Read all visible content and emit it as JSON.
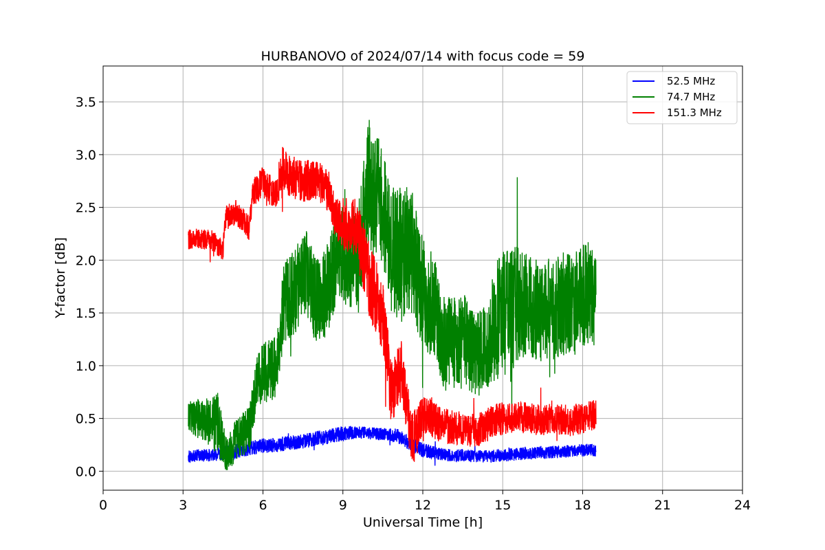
{
  "chart_data": {
    "type": "line",
    "title": "HURBANOVO of 2024/07/14 with focus code = 59",
    "xlabel": "Universal Time [h]",
    "ylabel": "Y-factor [dB]",
    "xlim": [
      0,
      24
    ],
    "ylim": [
      -0.18,
      3.84
    ],
    "x_ticks": [
      0,
      3,
      6,
      9,
      12,
      15,
      18,
      21,
      24
    ],
    "y_ticks": [
      0.0,
      0.5,
      1.0,
      1.5,
      2.0,
      2.5,
      3.0,
      3.5
    ],
    "x_tick_labels": [
      "0",
      "3",
      "6",
      "9",
      "12",
      "15",
      "18",
      "21",
      "24"
    ],
    "y_tick_labels": [
      "0.0",
      "0.5",
      "1.0",
      "1.5",
      "2.0",
      "2.5",
      "3.0",
      "3.5"
    ],
    "grid": true,
    "legend_position": "top-right",
    "series": [
      {
        "name": "52.5 MHz",
        "color": "#0000ff",
        "x": [
          3.2,
          3.5,
          4.0,
          4.5,
          5.0,
          5.5,
          6.0,
          6.5,
          7.0,
          7.5,
          8.0,
          8.5,
          9.0,
          9.5,
          10.0,
          10.5,
          11.0,
          11.5,
          12.0,
          12.5,
          13.0,
          13.5,
          14.0,
          14.5,
          15.0,
          15.5,
          16.0,
          16.5,
          17.0,
          17.5,
          18.0,
          18.5
        ],
        "mean": [
          0.14,
          0.15,
          0.15,
          0.17,
          0.19,
          0.22,
          0.24,
          0.25,
          0.27,
          0.28,
          0.31,
          0.33,
          0.36,
          0.37,
          0.36,
          0.35,
          0.34,
          0.27,
          0.2,
          0.17,
          0.15,
          0.15,
          0.14,
          0.14,
          0.15,
          0.16,
          0.17,
          0.18,
          0.18,
          0.19,
          0.2,
          0.2
        ],
        "amp": [
          0.06,
          0.06,
          0.06,
          0.07,
          0.07,
          0.07,
          0.07,
          0.07,
          0.07,
          0.07,
          0.07,
          0.07,
          0.07,
          0.06,
          0.06,
          0.06,
          0.07,
          0.07,
          0.07,
          0.06,
          0.06,
          0.06,
          0.06,
          0.06,
          0.06,
          0.06,
          0.06,
          0.06,
          0.06,
          0.06,
          0.06,
          0.06
        ]
      },
      {
        "name": "74.7 MHz",
        "color": "#008000",
        "x": [
          3.2,
          3.5,
          4.0,
          4.3,
          4.6,
          5.0,
          5.5,
          5.8,
          6.2,
          6.5,
          6.8,
          7.2,
          7.6,
          8.0,
          8.4,
          8.8,
          9.2,
          9.6,
          10.0,
          10.4,
          10.8,
          11.2,
          11.6,
          12.0,
          12.4,
          12.8,
          13.2,
          13.6,
          14.0,
          14.4,
          14.8,
          15.2,
          15.6,
          16.0,
          16.5,
          17.0,
          17.5,
          18.0,
          18.5
        ],
        "mean": [
          0.55,
          0.5,
          0.45,
          0.45,
          0.15,
          0.3,
          0.4,
          0.9,
          0.95,
          1.0,
          1.6,
          1.7,
          1.9,
          1.6,
          1.7,
          2.1,
          2.0,
          2.05,
          2.7,
          2.6,
          2.1,
          2.05,
          2.1,
          1.65,
          1.6,
          1.2,
          1.2,
          1.25,
          1.1,
          1.2,
          1.45,
          1.5,
          1.6,
          1.55,
          1.5,
          1.55,
          1.6,
          1.65,
          1.7
        ],
        "amp": [
          0.18,
          0.18,
          0.22,
          0.3,
          0.18,
          0.2,
          0.22,
          0.3,
          0.3,
          0.3,
          0.4,
          0.4,
          0.45,
          0.4,
          0.45,
          0.45,
          0.45,
          0.55,
          0.7,
          0.55,
          0.6,
          0.65,
          0.6,
          0.55,
          0.5,
          0.45,
          0.45,
          0.45,
          0.4,
          0.45,
          0.6,
          0.6,
          0.55,
          0.5,
          0.5,
          0.5,
          0.5,
          0.5,
          0.5
        ]
      },
      {
        "name": "151.3 MHz",
        "color": "#ff0000",
        "x": [
          3.2,
          3.6,
          4.0,
          4.5,
          4.6,
          5.0,
          5.5,
          5.6,
          6.0,
          6.5,
          6.7,
          7.0,
          7.5,
          8.0,
          8.5,
          8.7,
          9.0,
          9.5,
          10.0,
          10.5,
          10.8,
          11.2,
          11.6,
          11.9,
          12.2,
          12.6,
          13.0,
          13.5,
          14.0,
          14.5,
          15.0,
          15.5,
          16.0,
          16.5,
          17.0,
          17.5,
          18.0,
          18.5
        ],
        "mean": [
          2.2,
          2.2,
          2.2,
          2.1,
          2.4,
          2.45,
          2.3,
          2.65,
          2.75,
          2.6,
          2.9,
          2.8,
          2.75,
          2.75,
          2.65,
          2.4,
          2.35,
          2.3,
          1.8,
          1.5,
          0.75,
          0.95,
          0.3,
          0.45,
          0.55,
          0.45,
          0.42,
          0.4,
          0.38,
          0.45,
          0.5,
          0.52,
          0.5,
          0.48,
          0.5,
          0.48,
          0.5,
          0.55
        ],
        "amp": [
          0.1,
          0.1,
          0.1,
          0.1,
          0.12,
          0.12,
          0.12,
          0.15,
          0.15,
          0.15,
          0.22,
          0.2,
          0.2,
          0.2,
          0.2,
          0.2,
          0.25,
          0.3,
          0.35,
          0.35,
          0.3,
          0.3,
          0.25,
          0.22,
          0.2,
          0.18,
          0.17,
          0.16,
          0.16,
          0.16,
          0.16,
          0.15,
          0.15,
          0.15,
          0.15,
          0.15,
          0.15,
          0.15
        ]
      }
    ]
  }
}
